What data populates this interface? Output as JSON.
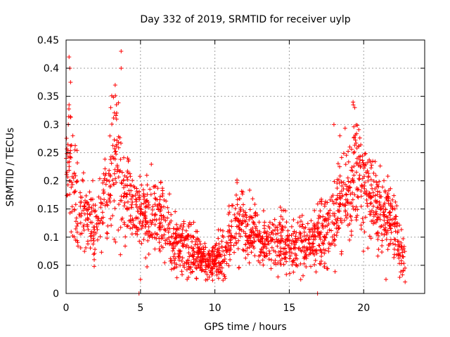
{
  "chart_data": {
    "type": "scatter",
    "title": "Day 332 of 2019, SRMTID for receiver uylp",
    "xlabel": "GPS time / hours",
    "ylabel": "SRMTID / TECUs",
    "xlim": [
      0,
      24.1
    ],
    "ylim": [
      0,
      0.45
    ],
    "x_ticks": [
      0,
      5,
      10,
      15,
      20
    ],
    "y_ticks": [
      0,
      0.05,
      0.1,
      0.15,
      0.2,
      0.25,
      0.3,
      0.35,
      0.4,
      0.45
    ],
    "x_tick_labels": [
      "0",
      "5",
      "10",
      "15",
      "20"
    ],
    "y_tick_labels": [
      "0",
      "0.05",
      "0.1",
      "0.15",
      "0.2",
      "0.25",
      "0.3",
      "0.35",
      "0.4",
      "0.45"
    ],
    "grid": true,
    "marker": "+",
    "color": "#ff0000",
    "series": [
      {
        "name": "SRMTID",
        "envelope": {
          "x": [
            0,
            0.25,
            0.5,
            1,
            1.5,
            2,
            2.5,
            3,
            3.25,
            3.5,
            3.75,
            4,
            4.5,
            5,
            5.5,
            6,
            6.5,
            7,
            7.5,
            8,
            8.5,
            9,
            9.5,
            10,
            10.5,
            11,
            11.5,
            12,
            12.5,
            13,
            13.5,
            14,
            14.5,
            15,
            15.5,
            16,
            16.5,
            17,
            17.5,
            18,
            18.5,
            19,
            19.25,
            19.5,
            20,
            20.5,
            21,
            21.5,
            22,
            22.5,
            22.8
          ],
          "mean": [
            0.22,
            0.24,
            0.18,
            0.15,
            0.13,
            0.12,
            0.16,
            0.2,
            0.26,
            0.24,
            0.2,
            0.17,
            0.15,
            0.14,
            0.14,
            0.14,
            0.13,
            0.1,
            0.09,
            0.08,
            0.08,
            0.065,
            0.06,
            0.06,
            0.07,
            0.1,
            0.13,
            0.12,
            0.11,
            0.1,
            0.095,
            0.09,
            0.09,
            0.085,
            0.085,
            0.09,
            0.095,
            0.1,
            0.11,
            0.13,
            0.16,
            0.18,
            0.2,
            0.21,
            0.2,
            0.17,
            0.15,
            0.14,
            0.12,
            0.08,
            0.05
          ],
          "spread": [
            0.04,
            0.07,
            0.06,
            0.04,
            0.04,
            0.035,
            0.05,
            0.06,
            0.08,
            0.08,
            0.06,
            0.045,
            0.04,
            0.04,
            0.04,
            0.04,
            0.04,
            0.035,
            0.03,
            0.03,
            0.03,
            0.02,
            0.02,
            0.02,
            0.03,
            0.035,
            0.04,
            0.035,
            0.03,
            0.03,
            0.03,
            0.03,
            0.03,
            0.03,
            0.03,
            0.03,
            0.035,
            0.035,
            0.04,
            0.05,
            0.05,
            0.06,
            0.08,
            0.06,
            0.05,
            0.045,
            0.04,
            0.035,
            0.035,
            0.03,
            0.02
          ]
        },
        "count": 1900,
        "highlights": [
          {
            "x": 0.2,
            "y": 0.42
          },
          {
            "x": 0.25,
            "y": 0.4
          },
          {
            "x": 0.3,
            "y": 0.375
          },
          {
            "x": 0.15,
            "y": 0.3
          },
          {
            "x": 0.2,
            "y": 0.335
          },
          {
            "x": 3.7,
            "y": 0.43
          },
          {
            "x": 3.7,
            "y": 0.4
          },
          {
            "x": 3.3,
            "y": 0.37
          },
          {
            "x": 3.0,
            "y": 0.33
          },
          {
            "x": 19.3,
            "y": 0.335
          },
          {
            "x": 19.4,
            "y": 0.33
          },
          {
            "x": 18.0,
            "y": 0.3
          },
          {
            "x": 18.4,
            "y": 0.28
          },
          {
            "x": 4.9,
            "y": 0.0
          },
          {
            "x": 5.0,
            "y": 0.025
          },
          {
            "x": 16.9,
            "y": 0.0
          },
          {
            "x": 9.5,
            "y": 0.025
          },
          {
            "x": 21.5,
            "y": 0.025
          }
        ]
      }
    ]
  }
}
